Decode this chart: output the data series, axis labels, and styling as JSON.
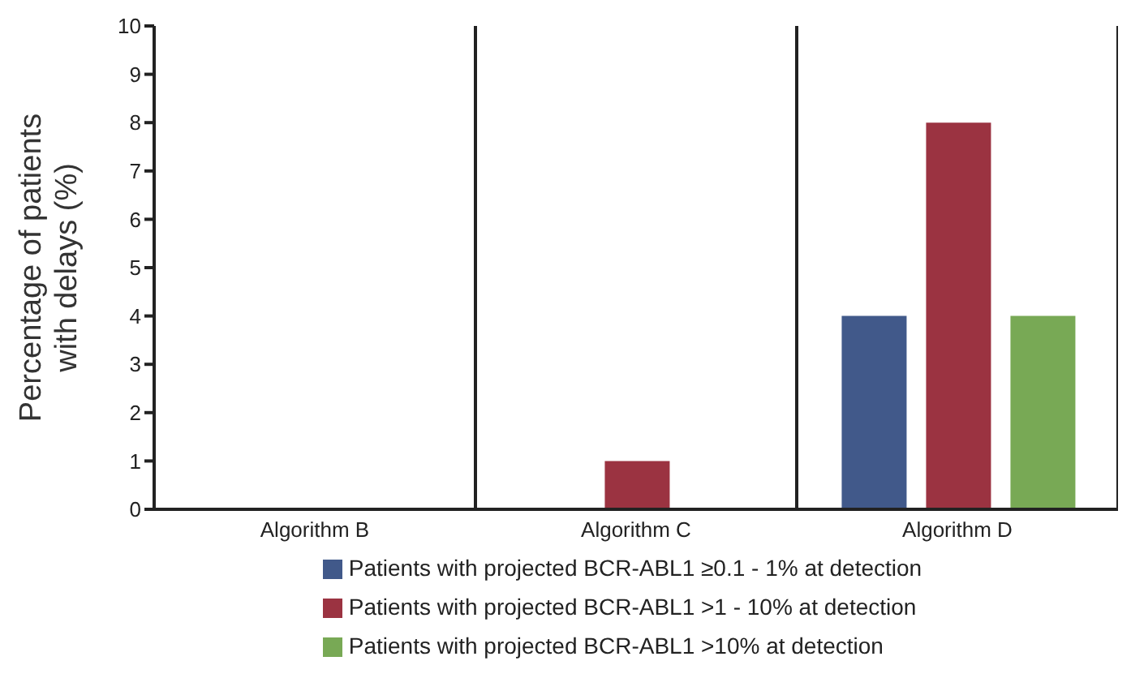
{
  "chart_data": {
    "type": "bar",
    "ylabel": "Percentage of patients with delays (%)",
    "categories": [
      "Algorithm B",
      "Algorithm C",
      "Algorithm D"
    ],
    "series": [
      {
        "name": "Patients with projected BCR-ABL1 ≥0.1 - 1% at detection",
        "color": "#41598a",
        "values": [
          0,
          0,
          4
        ]
      },
      {
        "name": "Patients with projected BCR-ABL1 >1 - 10% at detection",
        "color": "#9b3341",
        "values": [
          0,
          1,
          8
        ]
      },
      {
        "name": "Patients with projected BCR-ABL1 >10% at detection",
        "color": "#78a955",
        "values": [
          0,
          0,
          4
        ]
      }
    ],
    "ylim": [
      0,
      10
    ],
    "yticks": [
      0,
      1,
      2,
      3,
      4,
      5,
      6,
      7,
      8,
      9,
      10
    ],
    "grid": "x",
    "legend": "bottom"
  }
}
